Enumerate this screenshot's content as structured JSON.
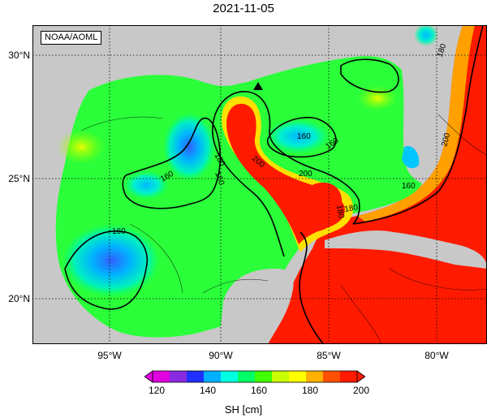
{
  "title": "2021-11-05",
  "credit": "NOAA/AOML",
  "lat_labels": [
    "30°N",
    "25°N",
    "20°N"
  ],
  "lon_labels": [
    "95°W",
    "90°W",
    "85°W",
    "80°W"
  ],
  "contour_labels": [
    "180",
    "160",
    "160",
    "160",
    "160",
    "200",
    "200",
    "180",
    "200",
    "180",
    "160",
    "160",
    "180"
  ],
  "colorbar": {
    "ticks": [
      "120",
      "140",
      "160",
      "180",
      "200"
    ],
    "title": "SH [cm]",
    "colors": [
      "#e000e0",
      "#8a2be2",
      "#2030ff",
      "#00b0ff",
      "#00ffe0",
      "#00ff66",
      "#40ff00",
      "#c8ff00",
      "#ffff00",
      "#ffb000",
      "#ff5000",
      "#ff1a00"
    ]
  },
  "colors": {
    "land": "#c8c8c8",
    "warm": "#ff1a00",
    "gulf": "#2aff3a"
  }
}
